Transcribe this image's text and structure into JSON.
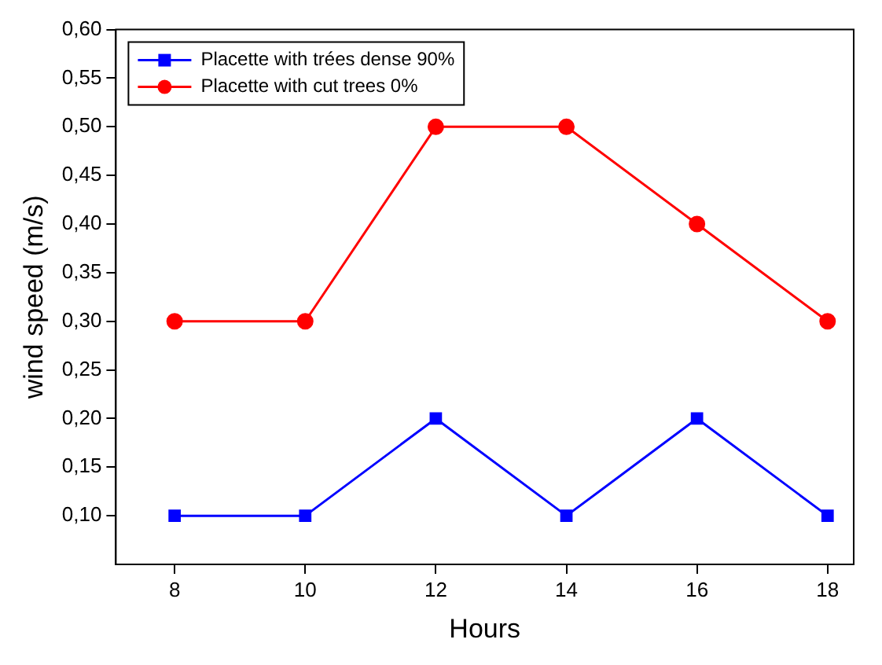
{
  "chart_data": {
    "type": "line",
    "xlabel": "Hours",
    "ylabel": "wind speed (m/s)",
    "x": [
      8,
      10,
      12,
      14,
      16,
      18
    ],
    "series": [
      {
        "name": "Placette with trées dense 90%",
        "color": "#0000ff",
        "marker": "square",
        "values": [
          0.1,
          0.1,
          0.2,
          0.1,
          0.2,
          0.1
        ]
      },
      {
        "name": "Placette with cut trees 0%",
        "color": "#ff0000",
        "marker": "circle",
        "values": [
          0.3,
          0.3,
          0.5,
          0.5,
          0.4,
          0.3
        ]
      }
    ],
    "xlim": [
      7.1,
      18.4
    ],
    "xticks": [
      8,
      10,
      12,
      14,
      16,
      18
    ],
    "ylim": [
      0.05,
      0.6
    ],
    "yticks": [
      {
        "value": 0.1,
        "label": "0,10"
      },
      {
        "value": 0.15,
        "label": "0,15"
      },
      {
        "value": 0.2,
        "label": "0,20"
      },
      {
        "value": 0.25,
        "label": "0,25"
      },
      {
        "value": 0.3,
        "label": "0,30"
      },
      {
        "value": 0.35,
        "label": "0,35"
      },
      {
        "value": 0.4,
        "label": "0,40"
      },
      {
        "value": 0.45,
        "label": "0,45"
      },
      {
        "value": 0.5,
        "label": "0,50"
      },
      {
        "value": 0.55,
        "label": "0,55"
      },
      {
        "value": 0.6,
        "label": "0,60"
      }
    ],
    "legend": "top left",
    "grid": false,
    "line_style": "solid"
  }
}
